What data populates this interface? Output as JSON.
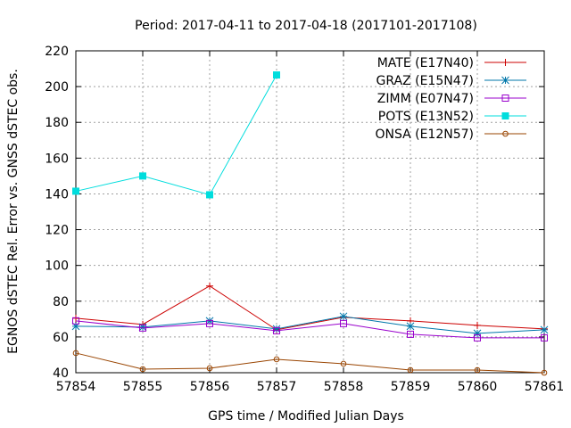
{
  "chart_data": {
    "type": "line",
    "title": "Period: 2017-04-11 to 2017-04-18 (2017101-2017108)",
    "xlabel": "GPS time / Modified Julian Days",
    "ylabel": "EGNOS dSTEC Rel. Error vs. GNSS dSTEC obs.",
    "xlim": [
      57854,
      57861
    ],
    "ylim": [
      40,
      220
    ],
    "xticks": [
      57854,
      57855,
      57856,
      57857,
      57858,
      57859,
      57860,
      57861
    ],
    "yticks": [
      40,
      60,
      80,
      100,
      120,
      140,
      160,
      180,
      200,
      220
    ],
    "grid": true,
    "legend_position": "top-right",
    "series": [
      {
        "name": "MATE (E17N40)",
        "color": "#cc0000",
        "marker": "plus",
        "x": [
          57854,
          57855,
          57856,
          57857,
          57858,
          57859,
          57860,
          57861
        ],
        "y": [
          70.5,
          67,
          88.5,
          64,
          71,
          69,
          66.5,
          64.5
        ]
      },
      {
        "name": "GRAZ (E15N47)",
        "color": "#0077aa",
        "marker": "star",
        "x": [
          57854,
          57855,
          57856,
          57857,
          57858,
          57859,
          57860,
          57861
        ],
        "y": [
          66,
          65.5,
          69,
          64.5,
          71.5,
          66,
          62,
          64
        ]
      },
      {
        "name": "ZIMM (E07N47)",
        "color": "#9900cc",
        "marker": "open-square",
        "x": [
          57854,
          57855,
          57856,
          57857,
          57858,
          57859,
          57860,
          57861
        ],
        "y": [
          69,
          65,
          67.5,
          63.5,
          67.5,
          61.5,
          59.5,
          59.5
        ]
      },
      {
        "name": "POTS (E13N52)",
        "color": "#00dddd",
        "marker": "filled-square",
        "x": [
          57854,
          57855,
          57856,
          57857
        ],
        "y": [
          141.5,
          150,
          139.5,
          206.5
        ]
      },
      {
        "name": "ONSA (E12N57)",
        "color": "#994400",
        "marker": "open-circle",
        "x": [
          57854,
          57855,
          57856,
          57857,
          57858,
          57859,
          57860,
          57861
        ],
        "y": [
          51,
          42,
          42.5,
          47.5,
          45,
          41.5,
          41.5,
          40
        ]
      }
    ]
  }
}
